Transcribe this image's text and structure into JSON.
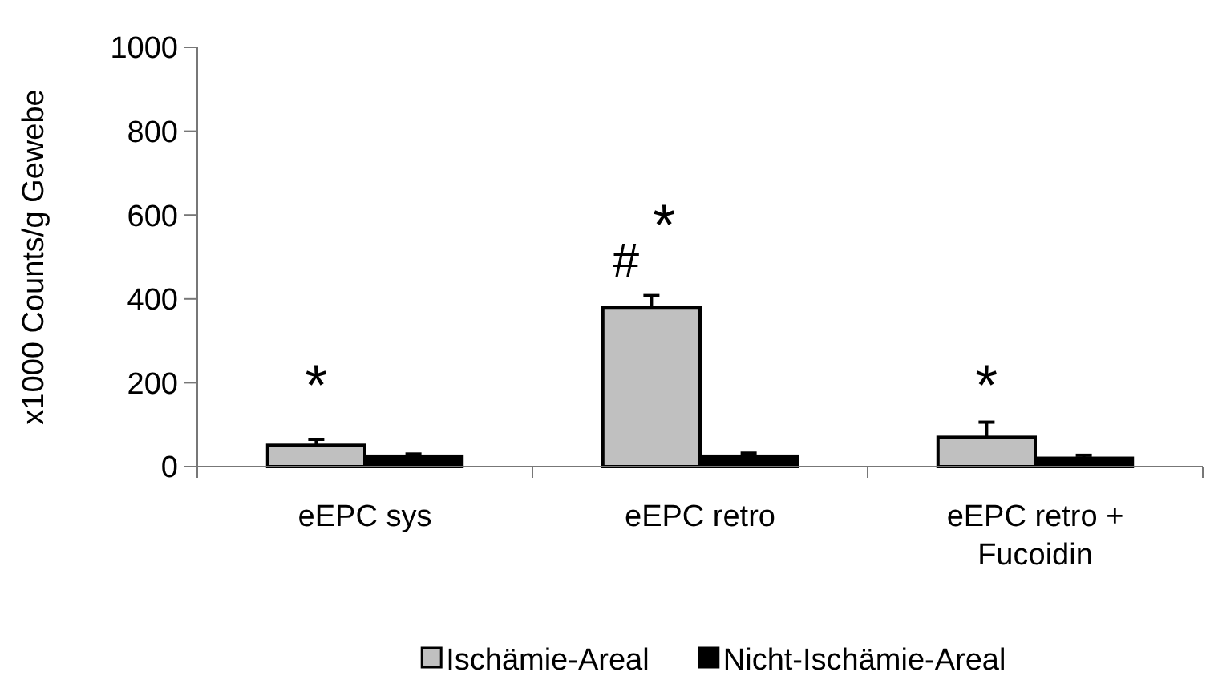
{
  "chart_data": {
    "type": "bar",
    "ylabel": "x1000 Counts/g Gewebe",
    "categories": [
      "eEPC sys",
      "eEPC retro",
      "eEPC retro + Fucoidin"
    ],
    "series": [
      {
        "name": "Ischämie-Areal",
        "color": "#c0c0c0",
        "values": [
          51,
          380,
          70
        ],
        "errors": [
          14,
          28,
          36
        ]
      },
      {
        "name": "Nicht-Ischämie-Areal",
        "color": "#000000",
        "values": [
          25,
          25,
          20
        ],
        "errors": [
          5,
          7,
          7
        ]
      }
    ],
    "ylim": [
      0,
      1000
    ],
    "yticks": [
      0,
      200,
      400,
      600,
      800,
      1000
    ],
    "legend": "bottom",
    "annotations": [
      "*",
      "#",
      "*",
      "*"
    ]
  }
}
